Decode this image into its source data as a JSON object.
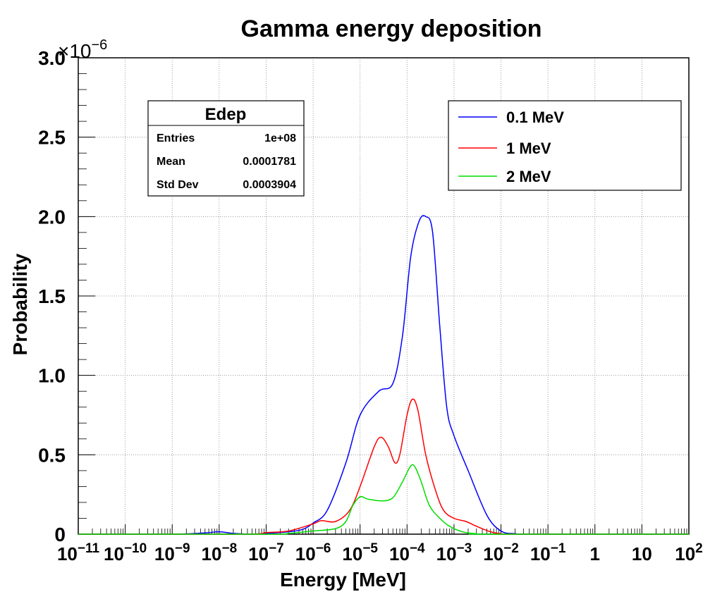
{
  "chart_data": {
    "type": "line",
    "title": "Gamma energy deposition",
    "xlabel": "Energy [MeV]",
    "ylabel": "Probability",
    "x_scale": "log",
    "xlim": [
      1e-11,
      100
    ],
    "ylim": [
      0,
      3e-06
    ],
    "y_multiplier_label": "×10",
    "y_multiplier_exponent": "−6",
    "x_tick_labels": [
      {
        "base": "10",
        "exp": "−11",
        "value": 1e-11
      },
      {
        "base": "10",
        "exp": "−10",
        "value": 1e-10
      },
      {
        "base": "10",
        "exp": "−9",
        "value": 1e-09
      },
      {
        "base": "10",
        "exp": "−8",
        "value": 1e-08
      },
      {
        "base": "10",
        "exp": "−7",
        "value": 1e-07
      },
      {
        "base": "10",
        "exp": "−6",
        "value": 1e-06
      },
      {
        "base": "10",
        "exp": "−5",
        "value": 1e-05
      },
      {
        "base": "10",
        "exp": "−4",
        "value": 0.0001
      },
      {
        "base": "10",
        "exp": "−3",
        "value": 0.001
      },
      {
        "base": "10",
        "exp": "−2",
        "value": 0.01
      },
      {
        "base": "10",
        "exp": "−1",
        "value": 0.1
      },
      {
        "base": "1",
        "exp": "",
        "value": 1
      },
      {
        "base": "10",
        "exp": "",
        "value": 10
      },
      {
        "base": "10",
        "exp": "2",
        "value": 100
      }
    ],
    "y_tick_labels": [
      {
        "label": "0",
        "value": 0
      },
      {
        "label": "0.5",
        "value": 5e-07
      },
      {
        "label": "1.0",
        "value": 1e-06
      },
      {
        "label": "1.5",
        "value": 1.5e-06
      },
      {
        "label": "2.0",
        "value": 2e-06
      },
      {
        "label": "2.5",
        "value": 2.5e-06
      },
      {
        "label": "3.0",
        "value": 3e-06
      }
    ],
    "grid": true,
    "legend_position": "top-right",
    "series": [
      {
        "name": "0.1 MeV",
        "color": "#0000ff",
        "points": [
          [
            1e-11,
            0
          ],
          [
            1e-09,
            0
          ],
          [
            5e-09,
            8e-09
          ],
          [
            1e-08,
            1.5e-08
          ],
          [
            2e-08,
            5e-09
          ],
          [
            5e-08,
            0
          ],
          [
            1e-07,
            5e-09
          ],
          [
            3e-07,
            1.5e-08
          ],
          [
            6e-07,
            3e-08
          ],
          [
            1e-06,
            7e-08
          ],
          [
            2e-06,
            1.5e-07
          ],
          [
            5e-06,
            4.5e-07
          ],
          [
            1e-05,
            7.5e-07
          ],
          [
            2.5e-05,
            9e-07
          ],
          [
            5e-05,
            9.5e-07
          ],
          [
            8e-05,
            1.25e-06
          ],
          [
            0.00012,
            1.75e-06
          ],
          [
            0.00018,
            1.97e-06
          ],
          [
            0.00025,
            2e-06
          ],
          [
            0.00035,
            1.9e-06
          ],
          [
            0.0005,
            1.3e-06
          ],
          [
            0.0007,
            8e-07
          ],
          [
            0.001,
            6.2e-07
          ],
          [
            0.002,
            4e-07
          ],
          [
            0.005,
            1.2e-07
          ],
          [
            0.01,
            2e-08
          ],
          [
            0.02,
            3e-09
          ],
          [
            0.05,
            0
          ],
          [
            100,
            0
          ]
        ]
      },
      {
        "name": "1 MeV",
        "color": "#ff0000",
        "points": [
          [
            1e-11,
            0
          ],
          [
            3e-08,
            0
          ],
          [
            1e-07,
            1e-08
          ],
          [
            3e-07,
            2e-08
          ],
          [
            1e-06,
            6.5e-08
          ],
          [
            1.5e-06,
            8.5e-08
          ],
          [
            3e-06,
            8e-08
          ],
          [
            6e-06,
            1.5e-07
          ],
          [
            1e-05,
            3e-07
          ],
          [
            2e-05,
            5.5e-07
          ],
          [
            2.8e-05,
            6.1e-07
          ],
          [
            4e-05,
            5.5e-07
          ],
          [
            5.5e-05,
            4.5e-07
          ],
          [
            7e-05,
            5e-07
          ],
          [
            0.0001,
            7.5e-07
          ],
          [
            0.00013,
            8.5e-07
          ],
          [
            0.00017,
            7.8e-07
          ],
          [
            0.00025,
            5e-07
          ],
          [
            0.0004,
            2.8e-07
          ],
          [
            0.0006,
            1.5e-07
          ],
          [
            0.001,
            1e-07
          ],
          [
            0.0018,
            8e-08
          ],
          [
            0.003,
            5e-08
          ],
          [
            0.006,
            1.5e-08
          ],
          [
            0.01,
            3e-09
          ],
          [
            0.02,
            0
          ],
          [
            100,
            0
          ]
        ]
      },
      {
        "name": "2 MeV",
        "color": "#00dd00",
        "points": [
          [
            1e-11,
            0
          ],
          [
            1e-07,
            0
          ],
          [
            3e-07,
            5e-09
          ],
          [
            1e-06,
            2e-08
          ],
          [
            3e-06,
            3.5e-08
          ],
          [
            5e-06,
            8e-08
          ],
          [
            7e-06,
            1.8e-07
          ],
          [
            1e-05,
            2.35e-07
          ],
          [
            1.5e-05,
            2.2e-07
          ],
          [
            3e-05,
            2.1e-07
          ],
          [
            5e-05,
            2.3e-07
          ],
          [
            8e-05,
            3.3e-07
          ],
          [
            0.00012,
            4.3e-07
          ],
          [
            0.00015,
            4.2e-07
          ],
          [
            0.0002,
            3.3e-07
          ],
          [
            0.0003,
            1.8e-07
          ],
          [
            0.0005,
            1e-07
          ],
          [
            0.0008,
            5e-08
          ],
          [
            0.0015,
            1.5e-08
          ],
          [
            0.003,
            3e-09
          ],
          [
            0.005,
            0
          ],
          [
            100,
            0
          ]
        ]
      }
    ],
    "stats_box": {
      "title": "Edep",
      "rows": [
        {
          "label": "Entries",
          "value": "1e+08"
        },
        {
          "label": "Mean",
          "value": "0.0001781"
        },
        {
          "label": "Std Dev",
          "value": "0.0003904"
        }
      ]
    }
  }
}
